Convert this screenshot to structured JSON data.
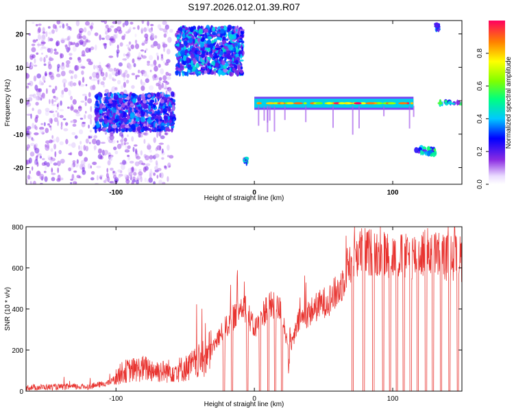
{
  "title": "S197.2026.012.01.39.R07",
  "chart_data": [
    {
      "type": "heatmap",
      "name": "spectrogram",
      "xlabel": "Height of straight line (km)",
      "ylabel": "Frequency (Hz)",
      "xlim": [
        -165,
        150
      ],
      "ylim": [
        -25,
        24
      ],
      "xticks": [
        -100,
        0,
        100
      ],
      "yticks": [
        -20,
        -10,
        0,
        10,
        20
      ],
      "colorbar": {
        "label": "Normalized spectral amplitude",
        "range": [
          0.0,
          1.0
        ],
        "ticks": [
          0.0,
          0.2,
          0.4,
          0.6,
          0.8
        ]
      },
      "features": [
        {
          "desc": "diffuse noise cloud",
          "x": [
            -165,
            -60
          ],
          "y": [
            -25,
            24
          ],
          "level": 0.1
        },
        {
          "desc": "cluster near zero Hz",
          "x": [
            -115,
            -58
          ],
          "y": [
            -9,
            2
          ],
          "level": 0.3
        },
        {
          "desc": "upper cluster",
          "x": [
            -56,
            -8
          ],
          "y": [
            8,
            22
          ],
          "level": 0.35
        },
        {
          "desc": "isolated blob",
          "x": [
            -7,
            -5
          ],
          "y": [
            -19,
            -17
          ],
          "level": 0.4
        },
        {
          "desc": "strong carrier",
          "x": [
            0,
            115
          ],
          "y": [
            -1.5,
            0
          ],
          "level": 0.95
        },
        {
          "desc": "low shifted segment",
          "x": [
            117,
            131
          ],
          "y": [
            -16,
            -14
          ],
          "level": 0.45
        },
        {
          "desc": "upper spot",
          "x": [
            131,
            134
          ],
          "y": [
            21,
            23
          ],
          "level": 0.3
        },
        {
          "desc": "carrier resumes",
          "x": [
            134,
            150
          ],
          "y": [
            -1,
            0
          ],
          "level": 0.45
        }
      ]
    },
    {
      "type": "line",
      "name": "snr",
      "xlabel": "Height of straight line (km)",
      "ylabel": "SNR (10 * v/v)",
      "xlim": [
        -165,
        150
      ],
      "ylim": [
        0,
        800
      ],
      "xticks": [
        -100,
        0,
        100
      ],
      "yticks": [
        0,
        200,
        400,
        600,
        800
      ],
      "color": "#e8332f",
      "profile": [
        [
          -165,
          18
        ],
        [
          -120,
          22
        ],
        [
          -105,
          40
        ],
        [
          -95,
          95
        ],
        [
          -80,
          110
        ],
        [
          -65,
          95
        ],
        [
          -50,
          110
        ],
        [
          -35,
          160
        ],
        [
          -22,
          300
        ],
        [
          -15,
          360
        ],
        [
          -8,
          430
        ],
        [
          0,
          300
        ],
        [
          10,
          420
        ],
        [
          20,
          390
        ],
        [
          25,
          180
        ],
        [
          32,
          340
        ],
        [
          45,
          410
        ],
        [
          55,
          450
        ],
        [
          62,
          500
        ],
        [
          68,
          620
        ],
        [
          75,
          680
        ],
        [
          90,
          670
        ],
        [
          110,
          650
        ],
        [
          125,
          680
        ],
        [
          140,
          650
        ],
        [
          150,
          645
        ]
      ],
      "dropouts_x": [
        -22,
        -16,
        -5,
        4,
        10,
        15,
        20,
        71,
        79,
        86,
        93,
        98,
        103,
        108,
        113,
        118,
        124,
        129,
        135,
        141,
        147
      ]
    }
  ]
}
